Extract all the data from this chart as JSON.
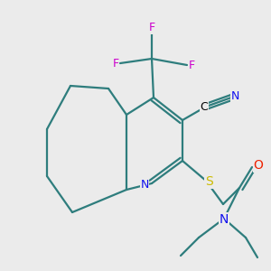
{
  "bg_color": "#ebebeb",
  "bond_color": "#2e7d7d",
  "bond_lw": 1.6,
  "atom_colors": {
    "N": "#1010ee",
    "S": "#ccbb00",
    "O": "#ee2200",
    "F": "#cc00cc",
    "C": "#000000"
  },
  "figsize": [
    3.0,
    3.0
  ],
  "dpi": 100
}
